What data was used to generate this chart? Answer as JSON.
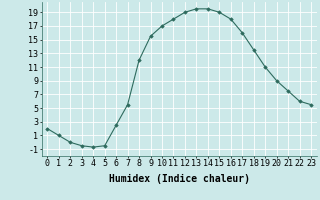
{
  "x": [
    0,
    1,
    2,
    3,
    4,
    5,
    6,
    7,
    8,
    9,
    10,
    11,
    12,
    13,
    14,
    15,
    16,
    17,
    18,
    19,
    20,
    21,
    22,
    23
  ],
  "y": [
    2,
    1,
    0,
    -0.5,
    -0.7,
    -0.5,
    2.5,
    5.5,
    12,
    15.5,
    17,
    18,
    19,
    19.5,
    19.5,
    19,
    18,
    16,
    13.5,
    11,
    9,
    7.5,
    6,
    5.5
  ],
  "line_color": "#2e6b5e",
  "marker_color": "#2e6b5e",
  "bg_color": "#cce9e9",
  "grid_color": "#ffffff",
  "xlabel": "Humidex (Indice chaleur)",
  "xlim": [
    -0.5,
    23.5
  ],
  "ylim": [
    -2,
    20.5
  ],
  "yticks": [
    -1,
    1,
    3,
    5,
    7,
    9,
    11,
    13,
    15,
    17,
    19
  ],
  "xticks": [
    0,
    1,
    2,
    3,
    4,
    5,
    6,
    7,
    8,
    9,
    10,
    11,
    12,
    13,
    14,
    15,
    16,
    17,
    18,
    19,
    20,
    21,
    22,
    23
  ],
  "font_size": 6,
  "label_font_size": 7
}
